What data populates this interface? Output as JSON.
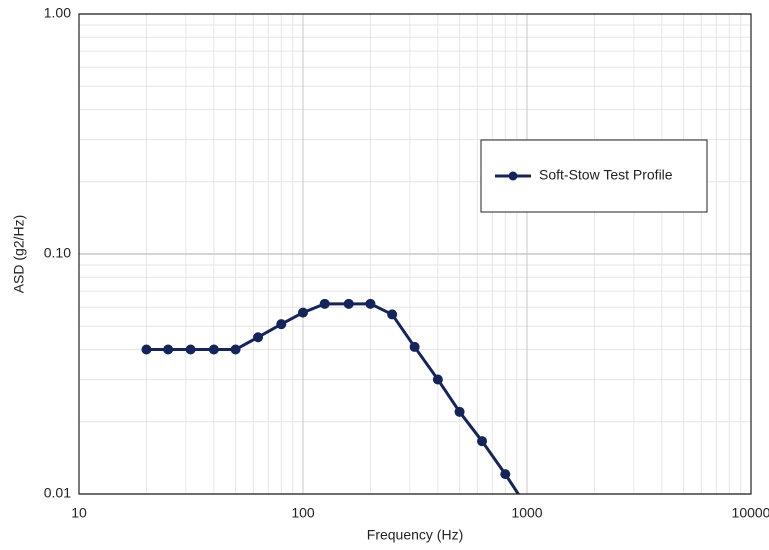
{
  "chart_data": {
    "type": "line",
    "x_label": "Frequency (Hz)",
    "y_label": "ASD (g2/Hz)",
    "x": [
      20,
      25,
      31.5,
      40,
      50,
      63,
      80,
      100,
      125,
      160,
      200,
      250,
      315,
      400,
      500,
      630,
      800,
      1000
    ],
    "series": [
      {
        "name": "Soft-Stow Test Profile",
        "color": "#15245a",
        "values": [
          0.04,
          0.04,
          0.04,
          0.04,
          0.04,
          0.045,
          0.051,
          0.057,
          0.062,
          0.062,
          0.062,
          0.056,
          0.041,
          0.03,
          0.022,
          0.0166,
          0.0121,
          0.0088
        ]
      }
    ],
    "xlim": [
      10,
      10000
    ],
    "ylim": [
      0.01,
      1
    ],
    "xticks": [
      10,
      100,
      1000,
      10000
    ],
    "yticks": [
      {
        "value": 0.01,
        "label": "0.01"
      },
      {
        "value": 0.1,
        "label": "0.10"
      },
      {
        "value": 1,
        "label": "1.00"
      }
    ],
    "x_scale": "log",
    "y_scale": "log",
    "grid": true,
    "legend": "upper right"
  }
}
